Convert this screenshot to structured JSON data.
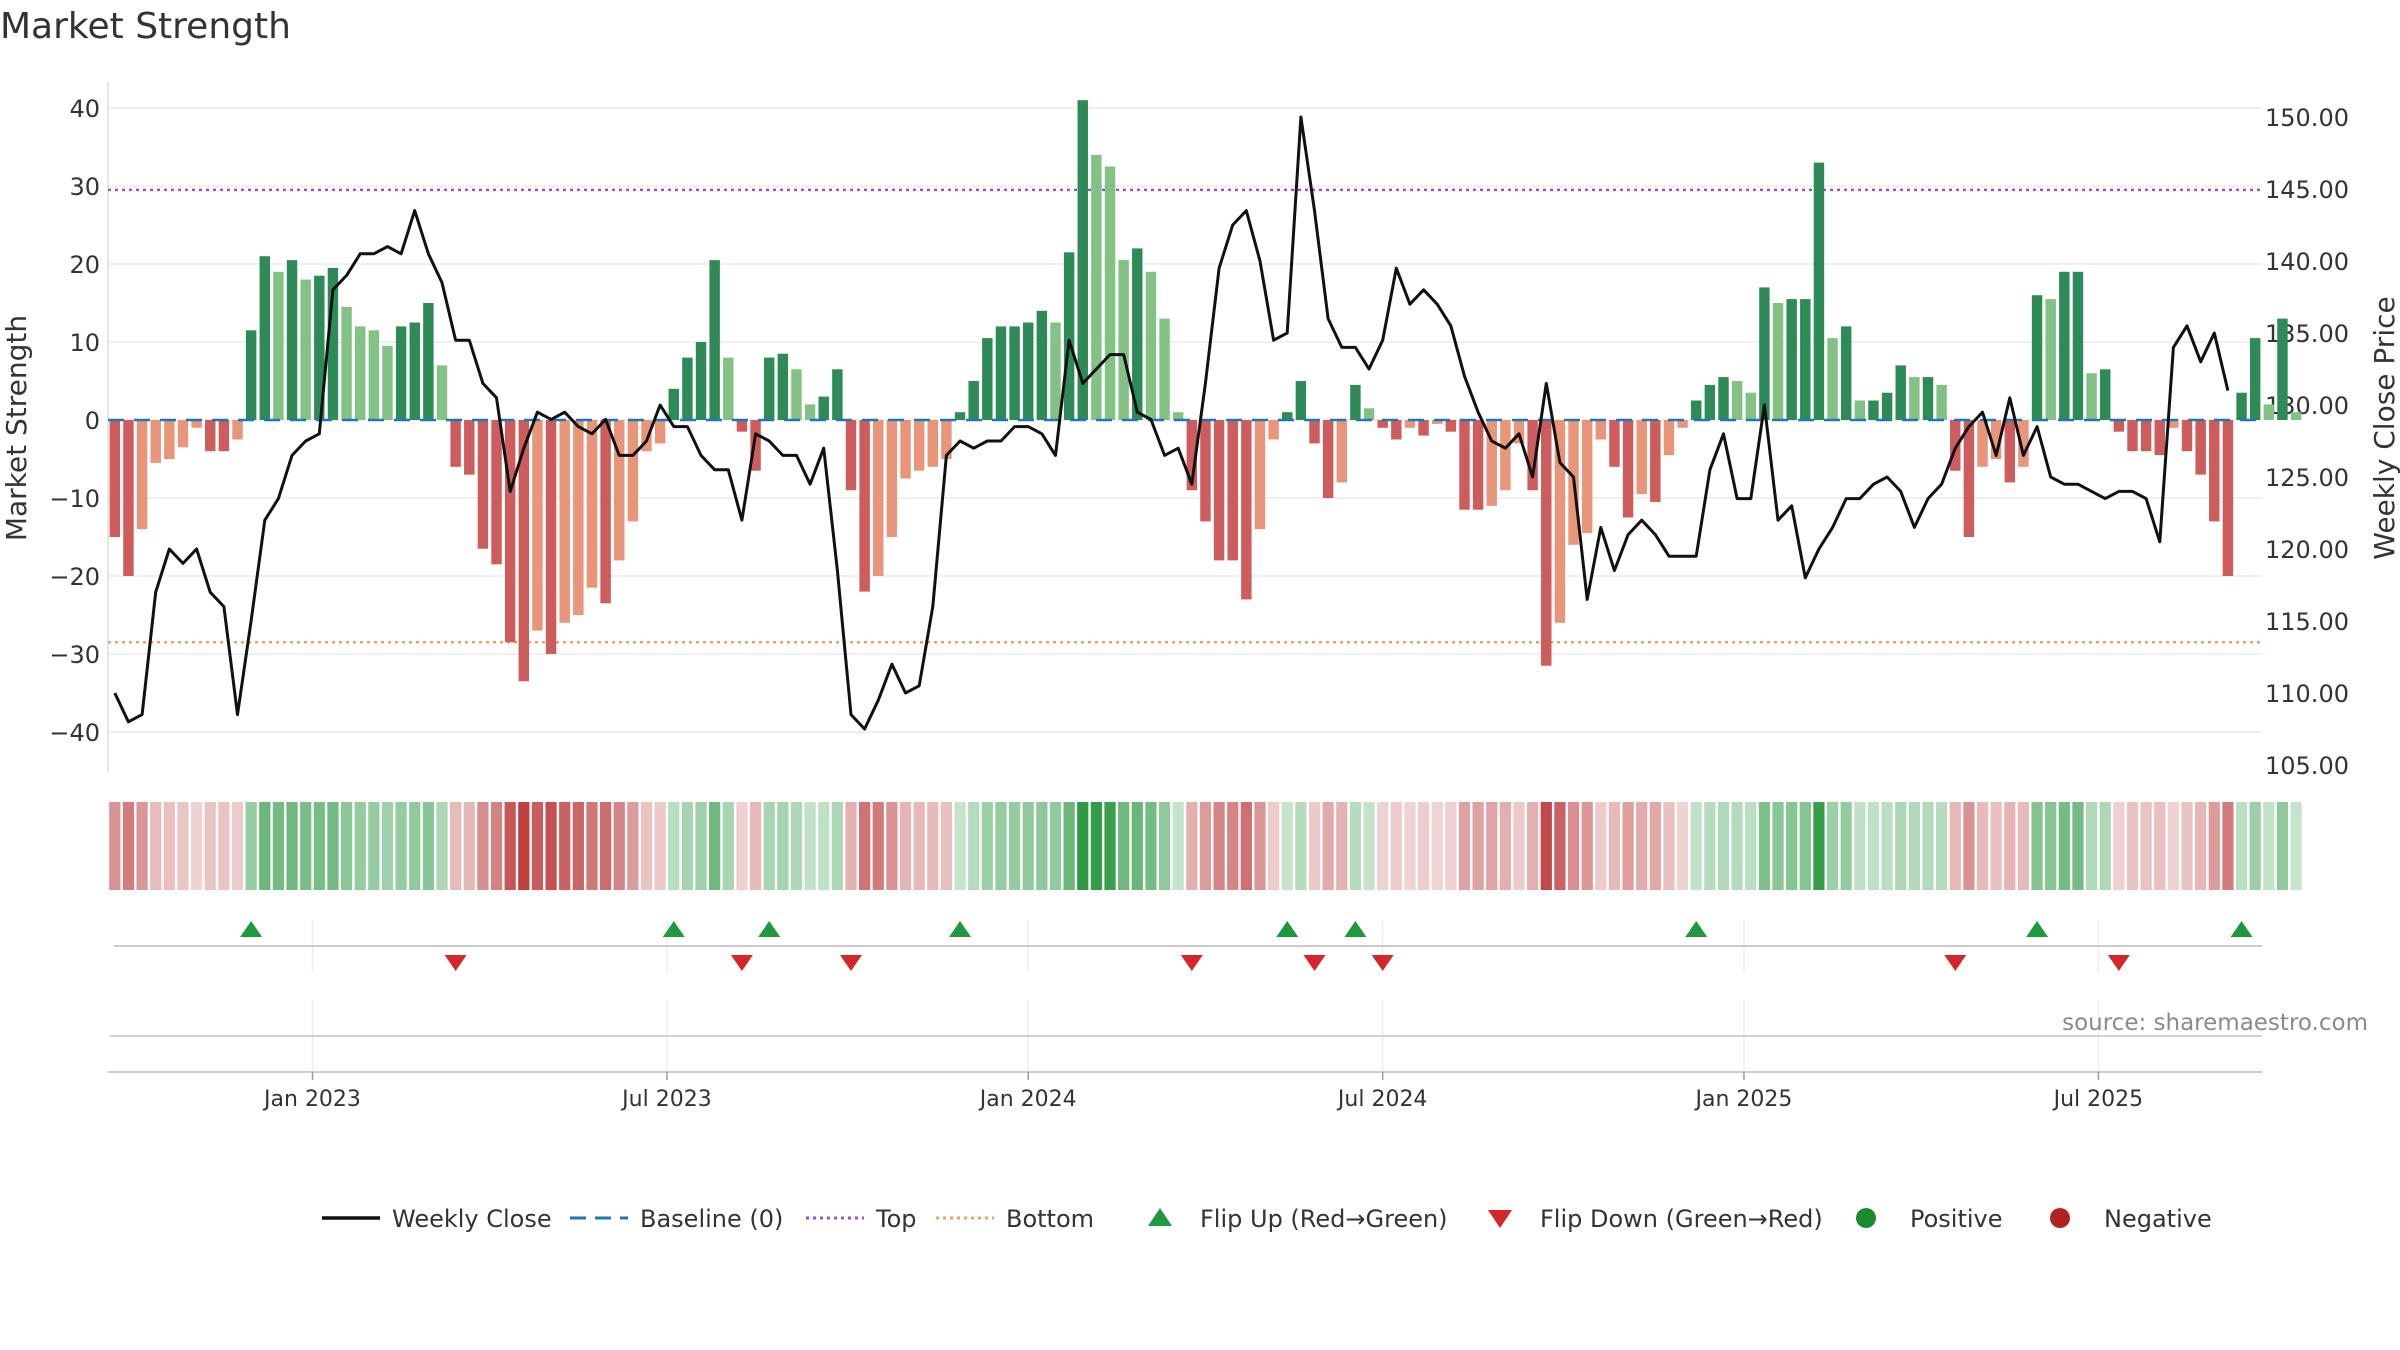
{
  "page": {
    "title": "Market Strength",
    "source": "source: sharemaestro.com"
  },
  "legend": [
    {
      "label": "Weekly Close",
      "kind": "line",
      "color": "#111111"
    },
    {
      "label": "Baseline (0)",
      "kind": "dash",
      "color": "#1f77b4"
    },
    {
      "label": "Top",
      "kind": "dot",
      "color": "#9b4fd8"
    },
    {
      "label": "Bottom",
      "kind": "dot",
      "color": "#f0a060"
    },
    {
      "label": "Flip Up (Red→Green)",
      "kind": "tri-up",
      "color": "#1e9a3c"
    },
    {
      "label": "Flip Down (Green→Red)",
      "kind": "tri-down",
      "color": "#d62728"
    },
    {
      "label": "Positive",
      "kind": "circle",
      "color": "#1e8a2e"
    },
    {
      "label": "Negative",
      "kind": "circle",
      "color": "#b22222"
    }
  ],
  "chart_data": {
    "type": "bar",
    "ylabel": "Market Strength",
    "y2label": "Weekly Close Price",
    "ylim": [
      -44,
      42
    ],
    "yticks": [
      40,
      30,
      20,
      10,
      0,
      -10,
      -20,
      -30,
      -40
    ],
    "y2lim": [
      104,
      152
    ],
    "y2ticks": [
      "150.00",
      "145.00",
      "140.00",
      "135.00",
      "130.00",
      "125.00",
      "120.00",
      "115.00",
      "110.00",
      "105.00"
    ],
    "top_level": 29.5,
    "bottom_level": -28.5,
    "x_ticks": [
      {
        "label": "Jan 2023",
        "week": 15
      },
      {
        "label": "Jul 2023",
        "week": 41
      },
      {
        "label": "Jan 2024",
        "week": 67.5
      },
      {
        "label": "Jul 2024",
        "week": 93.5
      },
      {
        "label": "Jan 2025",
        "week": 120
      },
      {
        "label": "Jul 2025",
        "week": 146
      }
    ],
    "weeks": 158,
    "strength": [
      -15,
      -20,
      -14,
      -5.5,
      -5,
      -3.5,
      -1,
      -4,
      -4,
      -2.5,
      11.5,
      21,
      19,
      20.5,
      18,
      18.5,
      19.5,
      14.5,
      12,
      11.5,
      9.5,
      12,
      12.5,
      15,
      7,
      -6,
      -7,
      -16.5,
      -18.5,
      -28.5,
      -33.5,
      -27,
      -30,
      -26,
      -25,
      -21.5,
      -23.5,
      -18,
      -13,
      -4,
      -3,
      4,
      8,
      10,
      20.5,
      8,
      -1.5,
      -6.5,
      8,
      8.5,
      6.5,
      2,
      3,
      6.5,
      -9,
      -22,
      -20,
      -15,
      -7.5,
      -6.5,
      -6,
      -5,
      1,
      5,
      10.5,
      12,
      12,
      12.5,
      14,
      12.5,
      21.5,
      41,
      34,
      32.5,
      20.5,
      22,
      19,
      13,
      1,
      -9,
      -13,
      -18,
      -18,
      -23,
      -14,
      -2.5,
      1,
      5,
      -3,
      -10,
      -8,
      4.5,
      1.5,
      -1,
      -2.5,
      -1,
      -2,
      -0.5,
      -1.5,
      -11.5,
      -11.5,
      -11,
      -9,
      -3,
      -9,
      -31.5,
      -26,
      -16,
      -14.5,
      -2.5,
      -6,
      -12.5,
      -9.5,
      -10.5,
      -4.5,
      -1,
      2.5,
      4.5,
      5.5,
      5,
      3.5,
      17,
      15,
      15.5,
      15.5,
      33,
      10.5,
      12,
      2.5,
      2.5,
      3.5,
      7,
      5.5,
      5.5,
      4.5,
      -6.5,
      -15,
      -6,
      -5,
      -8,
      -6,
      16,
      15.5,
      19,
      19,
      6,
      6.5,
      -1.5,
      -4,
      -4,
      -4.5,
      -1,
      -4,
      -7,
      -13,
      -20,
      3.5,
      10.5,
      2,
      13,
      1
    ],
    "weekly_close": [
      110,
      108,
      108.5,
      117,
      120,
      119,
      120,
      117,
      116,
      108.5,
      115,
      122,
      123.5,
      126.5,
      127.5,
      128,
      138,
      139,
      140.5,
      140.5,
      141,
      140.5,
      143.5,
      140.5,
      138.5,
      134.5,
      134.5,
      131.5,
      130.5,
      124,
      127,
      129.5,
      129,
      129.5,
      128.5,
      128,
      129,
      126.5,
      126.5,
      127.5,
      130,
      128.5,
      128.5,
      126.5,
      125.5,
      125.5,
      122,
      128,
      127.5,
      126.5,
      126.5,
      124.5,
      127,
      118.5,
      108.5,
      107.5,
      109.5,
      112,
      110,
      110.5,
      116,
      126.5,
      127.5,
      127,
      127.5,
      127.5,
      128.5,
      128.5,
      128,
      126.5,
      134.5,
      131.5,
      132.5,
      133.5,
      133.5,
      129.5,
      129,
      126.5,
      127,
      124.5,
      131.5,
      139.5,
      142.5,
      143.5,
      140,
      134.5,
      135,
      150,
      143.5,
      136,
      134,
      134,
      132.5,
      134.5,
      139.5,
      137,
      138,
      137,
      135.5,
      132,
      129.5,
      127.5,
      127,
      128,
      125,
      131.5,
      126,
      125,
      116.5,
      121.5,
      118.5,
      121,
      122,
      121,
      119.5,
      119.5,
      119.5,
      125.5,
      128,
      123.5,
      123.5,
      130,
      122,
      123,
      118,
      120,
      121.5,
      123.5,
      123.5,
      124.5,
      125,
      124,
      121.5,
      123.5,
      124.5,
      127,
      128.5,
      129.5,
      126.5,
      130.5,
      126.5,
      128.5,
      125,
      124.5,
      124.5,
      124,
      123.5,
      124,
      124,
      123.5,
      120.5,
      134,
      135.5,
      133,
      135,
      131
    ]
  }
}
